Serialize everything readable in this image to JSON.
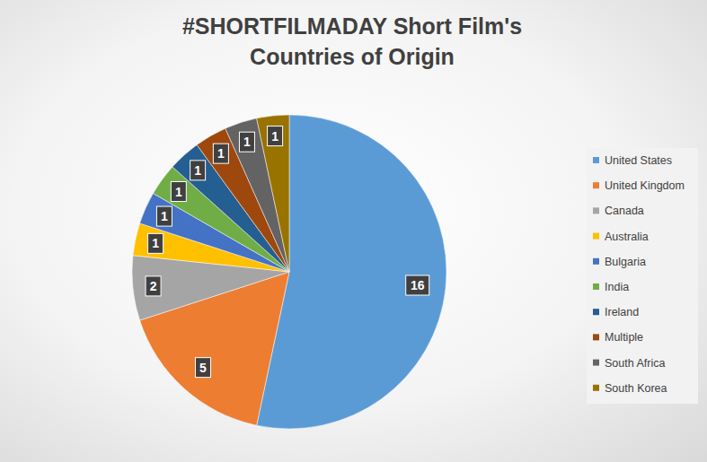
{
  "chart_data": {
    "type": "pie",
    "title": "#SHORTFILMADAY Short Film's Countries of Origin",
    "categories": [
      "United States",
      "United Kingdom",
      "Canada",
      "Australia",
      "Bulgaria",
      "India",
      "Ireland",
      "Multiple",
      "South Africa",
      "South Korea"
    ],
    "values": [
      16,
      5,
      2,
      1,
      1,
      1,
      1,
      1,
      1,
      1
    ],
    "colors": [
      "#5b9bd5",
      "#ed7d31",
      "#a5a5a5",
      "#ffc000",
      "#4472c4",
      "#70ad47",
      "#255e91",
      "#9e480e",
      "#636363",
      "#997300"
    ],
    "data_labels": true,
    "legend": "right"
  }
}
